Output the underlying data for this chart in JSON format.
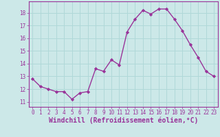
{
  "x": [
    0,
    1,
    2,
    3,
    4,
    5,
    6,
    7,
    8,
    9,
    10,
    11,
    12,
    13,
    14,
    15,
    16,
    17,
    18,
    19,
    20,
    21,
    22,
    23
  ],
  "y": [
    12.8,
    12.2,
    12.0,
    11.8,
    11.8,
    11.2,
    11.7,
    11.8,
    13.6,
    13.4,
    14.3,
    13.9,
    16.5,
    17.5,
    18.2,
    17.9,
    18.3,
    18.3,
    17.5,
    16.6,
    15.5,
    14.5,
    13.4,
    13.0
  ],
  "line_color": "#993399",
  "marker": "D",
  "marker_size": 2.2,
  "bg_color": "#cce8e8",
  "grid_color": "#b0d8d8",
  "xlabel": "Windchill (Refroidissement éolien,°C)",
  "ylabel_ticks": [
    11,
    12,
    13,
    14,
    15,
    16,
    17,
    18
  ],
  "xticks": [
    0,
    1,
    2,
    3,
    4,
    5,
    6,
    7,
    8,
    9,
    10,
    11,
    12,
    13,
    14,
    15,
    16,
    17,
    18,
    19,
    20,
    21,
    22,
    23
  ],
  "ylim": [
    10.6,
    18.9
  ],
  "xlim": [
    -0.5,
    23.5
  ],
  "tick_label_color": "#993399",
  "xlabel_color": "#993399",
  "tick_fontsize": 5.5,
  "xlabel_fontsize": 7.0,
  "spine_color": "#993399",
  "linewidth": 1.0
}
